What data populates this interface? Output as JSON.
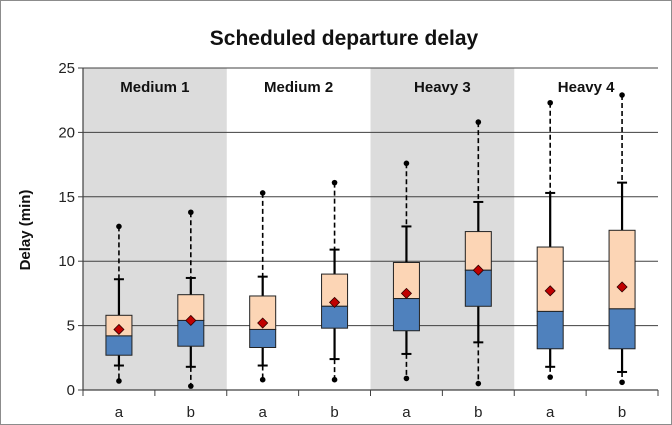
{
  "chart_data": {
    "type": "boxplot",
    "title": "Scheduled departure delay",
    "ylabel": "Delay (min)",
    "xlabel": "",
    "ylim": [
      0,
      25
    ],
    "yticks": [
      0,
      5,
      10,
      15,
      20,
      25
    ],
    "grid": "horizontal",
    "groups": [
      {
        "label": "Medium 1",
        "shaded": true
      },
      {
        "label": "Medium 2",
        "shaded": false
      },
      {
        "label": "Heavy 3",
        "shaded": true
      },
      {
        "label": "Heavy 4",
        "shaded": false
      }
    ],
    "categories": [
      "a",
      "b",
      "a",
      "b",
      "a",
      "b",
      "a",
      "b"
    ],
    "boxes": [
      {
        "group": "Medium 1",
        "category": "a",
        "outlier_low": 0.7,
        "whisker_low": 1.9,
        "q1": 2.7,
        "median": 4.2,
        "q3": 5.8,
        "whisker_high": 8.6,
        "outlier_high": 12.7,
        "mean": 4.7
      },
      {
        "group": "Medium 1",
        "category": "b",
        "outlier_low": 0.3,
        "whisker_low": 1.8,
        "q1": 3.4,
        "median": 5.4,
        "q3": 7.4,
        "whisker_high": 8.7,
        "outlier_high": 13.8,
        "mean": 5.4
      },
      {
        "group": "Medium 2",
        "category": "a",
        "outlier_low": 0.8,
        "whisker_low": 1.9,
        "q1": 3.3,
        "median": 4.7,
        "q3": 7.3,
        "whisker_high": 8.8,
        "outlier_high": 15.3,
        "mean": 5.2
      },
      {
        "group": "Medium 2",
        "category": "b",
        "outlier_low": 0.8,
        "whisker_low": 2.4,
        "q1": 4.8,
        "median": 6.5,
        "q3": 9.0,
        "whisker_high": 10.9,
        "outlier_high": 16.1,
        "mean": 6.8
      },
      {
        "group": "Heavy 3",
        "category": "a",
        "outlier_low": 0.9,
        "whisker_low": 2.8,
        "q1": 4.6,
        "median": 7.1,
        "q3": 9.9,
        "whisker_high": 12.7,
        "outlier_high": 17.6,
        "mean": 7.5
      },
      {
        "group": "Heavy 3",
        "category": "b",
        "outlier_low": 0.5,
        "whisker_low": 3.7,
        "q1": 6.5,
        "median": 9.3,
        "q3": 12.3,
        "whisker_high": 14.6,
        "outlier_high": 20.8,
        "mean": 9.3
      },
      {
        "group": "Heavy 4",
        "category": "a",
        "outlier_low": 1.0,
        "whisker_low": 1.8,
        "q1": 3.2,
        "median": 6.1,
        "q3": 11.1,
        "whisker_high": 15.3,
        "outlier_high": 22.3,
        "mean": 7.7
      },
      {
        "group": "Heavy 4",
        "category": "b",
        "outlier_low": 0.6,
        "whisker_low": 1.4,
        "q1": 3.2,
        "median": 6.3,
        "q3": 12.4,
        "whisker_high": 16.1,
        "outlier_high": 22.9,
        "mean": 8.0
      }
    ],
    "colors": {
      "shaded_band": "#dcdcdc",
      "lower_box": "#4f81bd",
      "upper_box": "#fcd5b5",
      "mean_marker": "#c00000",
      "gridline": "#404040",
      "whisker": "#000000"
    }
  }
}
